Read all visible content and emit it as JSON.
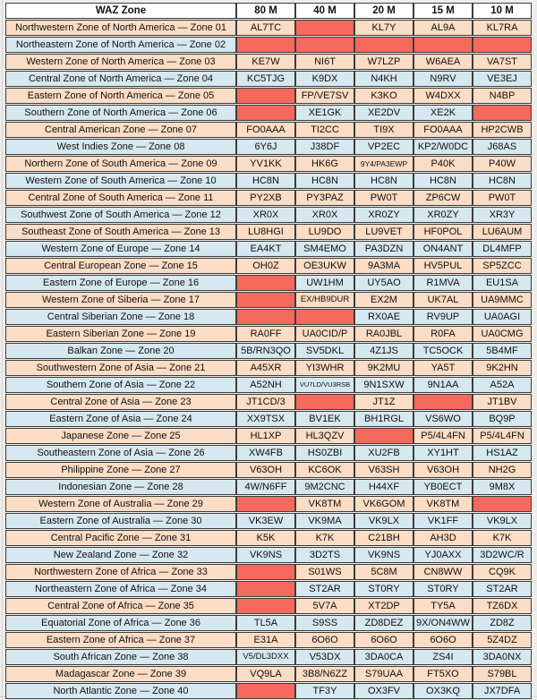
{
  "colors": {
    "missing_cell": "#f5695c",
    "row_peach": "#fbdcc4",
    "row_blue": "#d6e8ef",
    "header_bg": "#ffffff",
    "border": "#3d3d3d"
  },
  "table": {
    "header": {
      "zone": "WAZ Zone",
      "bands": [
        "80 M",
        "40 M",
        "20 M",
        "15 M",
        "10 M"
      ]
    },
    "rows": [
      {
        "zone": "Northwestern Zone of North America — Zone 01",
        "cells": [
          "AL7TC",
          null,
          "KL7Y",
          "AL9A",
          "KL7RA"
        ]
      },
      {
        "zone": "Northeastern Zone of North America — Zone 02",
        "cells": [
          null,
          null,
          null,
          null,
          null
        ]
      },
      {
        "zone": "Western Zone of North America — Zone 03",
        "cells": [
          "KE7W",
          "NI6T",
          "W7LZP",
          "W6AEA",
          "VA7ST"
        ]
      },
      {
        "zone": "Central Zone of North America — Zone 04",
        "cells": [
          "KC5TJG",
          "K9DX",
          "N4KH",
          "N9RV",
          "VE3EJ"
        ]
      },
      {
        "zone": "Eastern Zone of North America — Zone 05",
        "cells": [
          null,
          "FP/VE7SV",
          "K3KO",
          "W4DXX",
          "N4BP"
        ]
      },
      {
        "zone": "Southern Zone of North America — Zone 06",
        "cells": [
          null,
          "XE1GK",
          "XE2DV",
          "XE2K",
          null
        ]
      },
      {
        "zone": "Central American Zone — Zone 07",
        "cells": [
          "FO0AAA",
          "TI2CC",
          "TI9X",
          "FO0AAA",
          "HP2CWB"
        ]
      },
      {
        "zone": "West Indies Zone — Zone 08",
        "cells": [
          "6Y6J",
          "J38DF",
          "VP2EC",
          "KP2/W0DC",
          "J68AS"
        ]
      },
      {
        "zone": "Northern Zone of South America — Zone 09",
        "cells": [
          "YV1KK",
          "HK6G",
          "9Y4/PA3EWP",
          "P40K",
          "P40W"
        ]
      },
      {
        "zone": "Western Zone of South America — Zone 10",
        "cells": [
          "HC8N",
          "HC8N",
          "HC8N",
          "HC8N",
          "HC8N"
        ]
      },
      {
        "zone": "Central Zone of South America — Zone 11",
        "cells": [
          "PY2XB",
          "PY3PAZ",
          "PW0T",
          "ZP6CW",
          "PW0T"
        ]
      },
      {
        "zone": "Southwest Zone of South America — Zone 12",
        "cells": [
          "XR0X",
          "XR0X",
          "XR0ZY",
          "XR0ZY",
          "XR3Y"
        ]
      },
      {
        "zone": "Southeast Zone of South America — Zone 13",
        "cells": [
          "LU8HGI",
          "LU9DO",
          "LU9VET",
          "HF0POL",
          "LU6AUM"
        ]
      },
      {
        "zone": "Western Zone of Europe — Zone 14",
        "cells": [
          "EA4KT",
          "SM4EMO",
          "PA3DZN",
          "ON4ANT",
          "DL4MFP"
        ]
      },
      {
        "zone": "Central European Zone — Zone 15",
        "cells": [
          "OH0Z",
          "OE3UKW",
          "9A3MA",
          "HV5PUL",
          "SP5ZCC"
        ]
      },
      {
        "zone": "Eastern Zone of Europe — Zone 16",
        "cells": [
          null,
          "UW1HM",
          "UY5AO",
          "R1MVA",
          "EU1SA"
        ]
      },
      {
        "zone": "Western Zone of Siberia — Zone 17",
        "cells": [
          null,
          "EX/HB9DUR",
          "EX2M",
          "UK7AL",
          "UA9MMC"
        ]
      },
      {
        "zone": "Central Siberian Zone — Zone 18",
        "cells": [
          null,
          null,
          "RX0AE",
          "RV9UP",
          "UA0AGI"
        ]
      },
      {
        "zone": "Eastern Siberian Zone — Zone 19",
        "cells": [
          "RA0FF",
          "UA0CID/P",
          "RA0JBL",
          "R0FA",
          "UA0CMG"
        ]
      },
      {
        "zone": "Balkan Zone — Zone 20",
        "cells": [
          "5B/RN3QO",
          "SV5DKL",
          "4Z1JS",
          "TC5OCK",
          "5B4MF"
        ]
      },
      {
        "zone": "Southwestern Zone of Asia — Zone 21",
        "cells": [
          "A45XR",
          "YI3WHR",
          "9K2MU",
          "YA5T",
          "9K2HN"
        ]
      },
      {
        "zone": "Southern Zone of Asia — Zone 22",
        "cells": [
          "A52NH",
          "VU7LD/VU3RSB",
          "9N1SXW",
          "9N1AA",
          "A52A"
        ]
      },
      {
        "zone": "Central Zone of Asia — Zone 23",
        "cells": [
          "JT1CD/3",
          null,
          "JT1Z",
          null,
          "JT1BV"
        ]
      },
      {
        "zone": "Eastern Zone of Asia — Zone 24",
        "cells": [
          "XX9TSX",
          "BV1EK",
          "BH1RGL",
          "VS6WO",
          "BQ9P"
        ]
      },
      {
        "zone": "Japanese Zone — Zone 25",
        "cells": [
          "HL1XP",
          "HL3QZV",
          null,
          "P5/4L4FN",
          "P5/4L4FN"
        ]
      },
      {
        "zone": "Southeastern Zone of Asia — Zone 26",
        "cells": [
          "XW4FB",
          "HS0ZBI",
          "XU2FB",
          "XY1HT",
          "HS1AZ"
        ]
      },
      {
        "zone": "Philippine Zone — Zone 27",
        "cells": [
          "V63OH",
          "KC6OK",
          "V63SH",
          "V63OH",
          "NH2G"
        ]
      },
      {
        "zone": "Indonesian Zone — Zone 28",
        "cells": [
          "4W/N6FF",
          "9M2CNC",
          "H44XF",
          "YB0ECT",
          "9M8X"
        ]
      },
      {
        "zone": "Western Zone of Australia — Zone 29",
        "cells": [
          null,
          "VK8TM",
          "VK6GOM",
          "VK8TM",
          null
        ]
      },
      {
        "zone": "Eastern Zone of Australia — Zone 30",
        "cells": [
          "VK3EW",
          "VK9MA",
          "VK9LX",
          "VK1FF",
          "VK9LX"
        ]
      },
      {
        "zone": "Central Pacific Zone — Zone 31",
        "cells": [
          "K5K",
          "K7K",
          "C21BH",
          "AH3D",
          "K7K"
        ]
      },
      {
        "zone": "New Zealand Zone — Zone 32",
        "cells": [
          "VK9NS",
          "3D2TS",
          "VK9NS",
          "YJ0AXX",
          "3D2WC/R"
        ]
      },
      {
        "zone": "Northwestern Zone of Africa — Zone 33",
        "cells": [
          null,
          "S01WS",
          "5C8M",
          "CN8WW",
          "CQ9K"
        ]
      },
      {
        "zone": "Northeastern Zone of Africa — Zone 34",
        "cells": [
          null,
          "ST2AR",
          "ST0RY",
          "ST0RY",
          "ST2AR"
        ]
      },
      {
        "zone": "Central Zone of Africa — Zone 35",
        "cells": [
          null,
          "5V7A",
          "XT2DP",
          "TY5A",
          "TZ6DX"
        ]
      },
      {
        "zone": "Equatorial Zone of Africa — Zone 36",
        "cells": [
          "TL5A",
          "S9SS",
          "ZD8DEZ",
          "9X/ON4WW",
          "ZD8Z"
        ]
      },
      {
        "zone": "Eastern Zone of Africa — Zone 37",
        "cells": [
          "E31A",
          "6O6O",
          "6O6O",
          "6O6O",
          "5Z4DZ"
        ]
      },
      {
        "zone": "South African Zone — Zone 38",
        "cells": [
          "V5/DL3DXX",
          "V53DX",
          "3DA0CA",
          "ZS4I",
          "3DA0NX"
        ]
      },
      {
        "zone": "Madagascar Zone — Zone 39",
        "cells": [
          "VQ9LA",
          "3B8/N6ZZ",
          "S79UAA",
          "FT5XO",
          "S79BL"
        ]
      },
      {
        "zone": "North Atlantic Zone — Zone 40",
        "cells": [
          null,
          "TF3Y",
          "OX3FV",
          "OX3KQ",
          "JX7DFA"
        ]
      }
    ]
  }
}
